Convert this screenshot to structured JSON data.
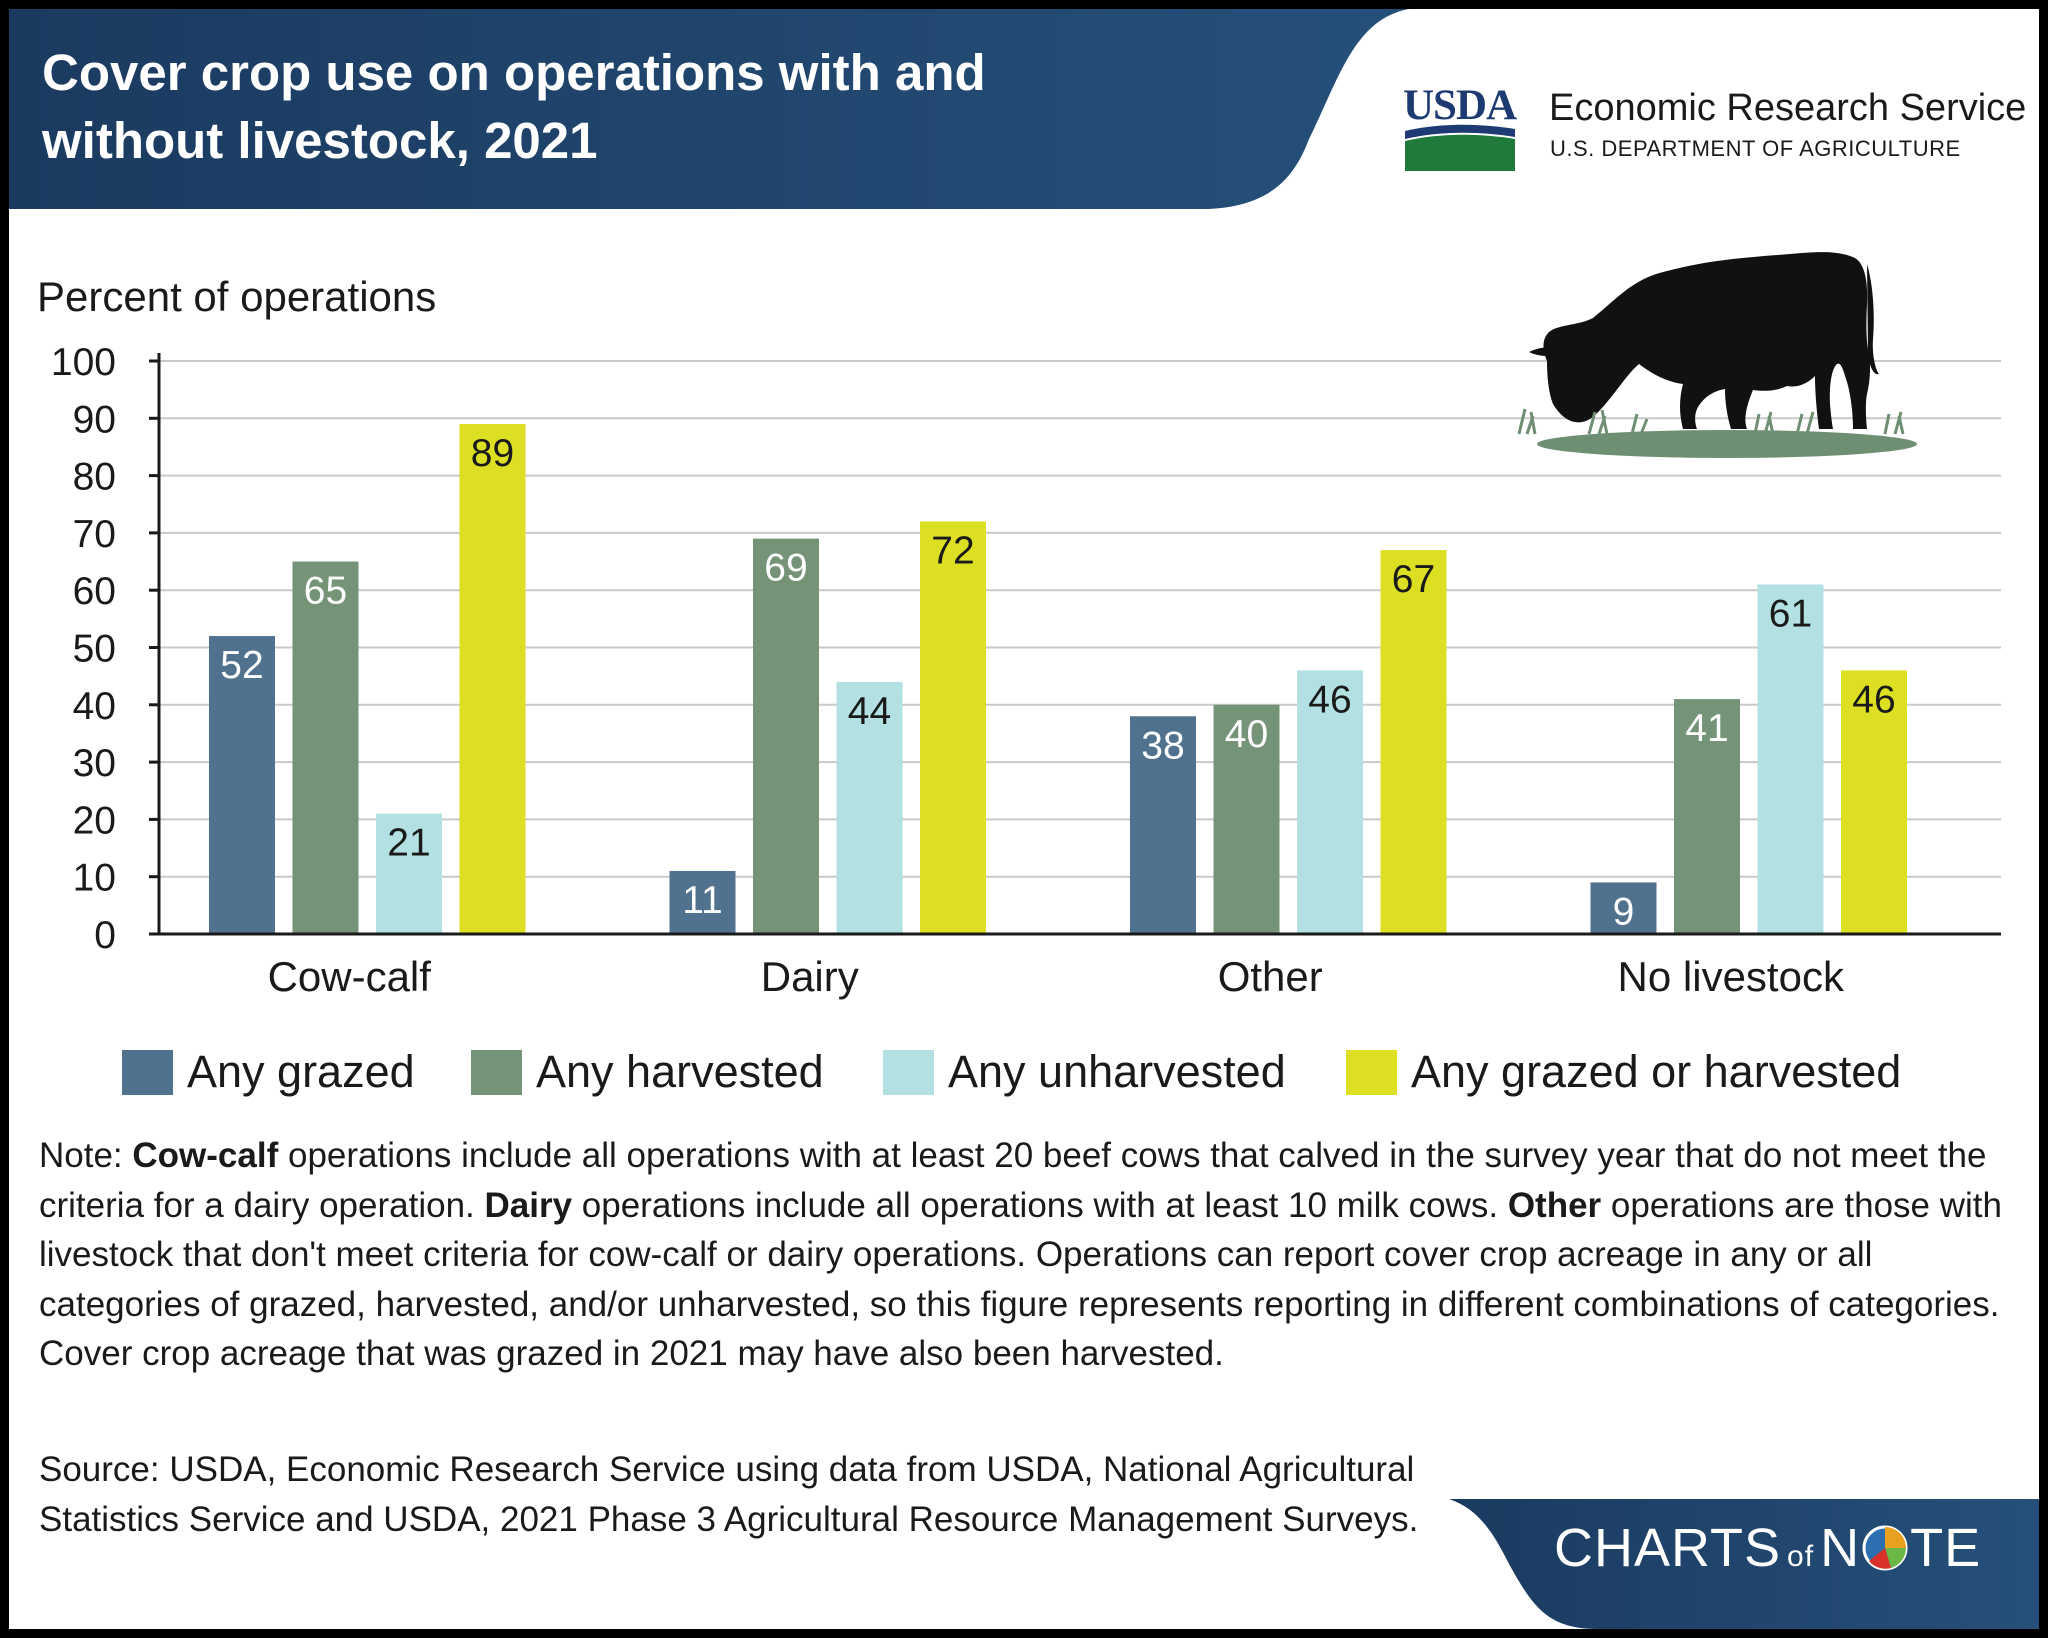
{
  "header": {
    "title": "Cover crop use on operations with and without livestock, 2021",
    "agency_mark": "USDA",
    "agency_name": "Economic Research Service",
    "department": "U.S. DEPARTMENT OF AGRICULTURE"
  },
  "chart_data": {
    "type": "bar",
    "title": "",
    "ylabel": "Percent of operations",
    "xlabel": "",
    "ylim": [
      0,
      100
    ],
    "yticks": [
      0,
      10,
      20,
      30,
      40,
      50,
      60,
      70,
      80,
      90,
      100
    ],
    "grid": true,
    "legend_position": "bottom",
    "categories": [
      "Cow-calf",
      "Dairy",
      "Other",
      "No livestock"
    ],
    "series": [
      {
        "name": "Any grazed",
        "color": "#51728f",
        "label_color": "#ffffff",
        "values": [
          52,
          11,
          38,
          9
        ]
      },
      {
        "name": "Any harvested",
        "color": "#759377",
        "label_color": "#ffffff",
        "values": [
          65,
          69,
          40,
          41
        ]
      },
      {
        "name": "Any unharvested",
        "color": "#b2e0e3",
        "label_color": "#1a1a1a",
        "values": [
          21,
          44,
          46,
          61
        ]
      },
      {
        "name": "Any grazed or harvested",
        "color": "#dde022",
        "label_color": "#1a1a1a",
        "values": [
          89,
          72,
          67,
          46
        ]
      }
    ]
  },
  "illustration": {
    "icon": "grazing-cow-icon"
  },
  "note": {
    "prefix": "Note: ",
    "cowcalf_term": "Cow-calf",
    "cowcalf_text": " operations include all operations with at least 20 beef cows that calved in the survey year that do not meet the criteria for a dairy operation. ",
    "dairy_term": "Dairy",
    "dairy_text": " operations include all operations with at least 10 milk cows. ",
    "other_term": "Other",
    "other_text": " operations are those with livestock that don't meet criteria for cow-calf or dairy operations. Operations can report cover crop acreage in any or all categories of grazed, harvested, and/or unharvested, so this figure represents reporting in different combinations of categories. Cover crop acreage that was grazed in 2021 may have also been harvested."
  },
  "source": "Source: USDA, Economic Research Service using data from USDA, National Agricultural Statistics Service and USDA, 2021 Phase 3 Agricultural Resource Management Surveys.",
  "footer": {
    "brand_left": "CHARTS",
    "brand_of": "of",
    "brand_n": "N",
    "brand_right": "TE",
    "colors": {
      "navy": "#1b3a60",
      "blue": "#25507a"
    }
  }
}
